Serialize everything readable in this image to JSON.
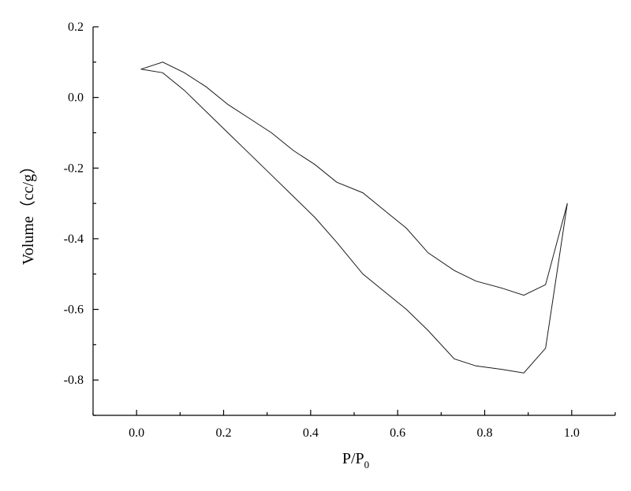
{
  "chart_data": {
    "type": "line",
    "xlabel_main": "P/P",
    "xlabel_sub": "0",
    "ylabel": "Volume（cc/g）",
    "xlim": [
      -0.1,
      1.1
    ],
    "ylim": [
      -0.9,
      0.2
    ],
    "x_ticks": [
      "0.0",
      "0.2",
      "0.4",
      "0.6",
      "0.8",
      "1.0"
    ],
    "y_ticks": [
      "0.2",
      "0.0",
      "-0.2",
      "-0.4",
      "-0.6",
      "-0.8"
    ],
    "grid": false,
    "series": [
      {
        "x": [
          0.01,
          0.06,
          0.11,
          0.16,
          0.21,
          0.26,
          0.31,
          0.36,
          0.41,
          0.46,
          0.52,
          0.57,
          0.62,
          0.67,
          0.73,
          0.78,
          0.84,
          0.89,
          0.94,
          0.99
        ],
        "y": [
          0.08,
          0.1,
          0.07,
          0.03,
          -0.02,
          -0.06,
          -0.1,
          -0.15,
          -0.19,
          -0.24,
          -0.27,
          -0.32,
          -0.37,
          -0.44,
          -0.49,
          -0.52,
          -0.54,
          -0.56,
          -0.53,
          -0.3
        ]
      },
      {
        "x": [
          0.01,
          0.06,
          0.11,
          0.16,
          0.21,
          0.26,
          0.31,
          0.36,
          0.41,
          0.46,
          0.52,
          0.57,
          0.62,
          0.67,
          0.73,
          0.78,
          0.84,
          0.89,
          0.94,
          0.99
        ],
        "y": [
          0.08,
          0.07,
          0.02,
          -0.04,
          -0.1,
          -0.16,
          -0.22,
          -0.28,
          -0.34,
          -0.41,
          -0.5,
          -0.55,
          -0.6,
          -0.66,
          -0.74,
          -0.76,
          -0.77,
          -0.78,
          -0.71,
          -0.3
        ]
      }
    ]
  }
}
